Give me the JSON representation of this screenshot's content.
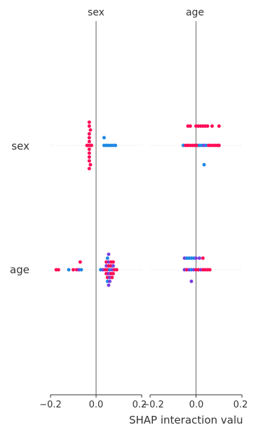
{
  "chart_data": {
    "type": "scatter",
    "subtype": "shap-interaction-summary",
    "features": [
      "sex",
      "age"
    ],
    "column_titles": [
      "sex",
      "age"
    ],
    "row_labels": [
      "sex",
      "age"
    ],
    "xlabel": "SHAP interaction valu",
    "xlim": [
      -0.2,
      0.2
    ],
    "xticks": [
      -0.2,
      0.0,
      0.2
    ],
    "xtick_labels": [
      "−0.2",
      "0.0",
      "0.2"
    ],
    "colors": {
      "high": "#ff0d57",
      "low": "#1e88e5",
      "mid": "#7b3fe0",
      "zero_line": "#999999",
      "spine": "#333333"
    },
    "panels": [
      {
        "row": "sex",
        "col": "sex",
        "points": [
          {
            "x": -0.03,
            "dy": -3,
            "c": "high"
          },
          {
            "x": -0.03,
            "dy": -2,
            "c": "high"
          },
          {
            "x": -0.03,
            "dy": -1,
            "c": "high"
          },
          {
            "x": -0.035,
            "dy": 0,
            "c": "high"
          },
          {
            "x": -0.025,
            "dy": 0,
            "c": "high"
          },
          {
            "x": -0.04,
            "dy": 0,
            "c": "high"
          },
          {
            "x": -0.02,
            "dy": 0,
            "c": "high"
          },
          {
            "x": -0.03,
            "dy": 1,
            "c": "high"
          },
          {
            "x": -0.03,
            "dy": 2,
            "c": "high"
          },
          {
            "x": -0.03,
            "dy": 3,
            "c": "high"
          },
          {
            "x": -0.025,
            "dy": -4,
            "c": "high"
          },
          {
            "x": -0.03,
            "dy": 4,
            "c": "high"
          },
          {
            "x": -0.03,
            "dy": -5,
            "c": "high"
          },
          {
            "x": -0.025,
            "dy": 5,
            "c": "high"
          },
          {
            "x": -0.03,
            "dy": -6,
            "c": "high"
          },
          {
            "x": -0.03,
            "dy": 6,
            "c": "high"
          },
          {
            "x": 0.035,
            "dy": 0,
            "c": "low"
          },
          {
            "x": 0.045,
            "dy": 0,
            "c": "low"
          },
          {
            "x": 0.055,
            "dy": 0,
            "c": "low"
          },
          {
            "x": 0.065,
            "dy": 0,
            "c": "low"
          },
          {
            "x": 0.075,
            "dy": 0,
            "c": "low"
          },
          {
            "x": 0.085,
            "dy": 0,
            "c": "low"
          },
          {
            "x": 0.035,
            "dy": -2,
            "c": "low"
          }
        ]
      },
      {
        "row": "sex",
        "col": "age",
        "points": [
          {
            "x": -0.055,
            "dy": 0,
            "c": "low"
          },
          {
            "x": -0.045,
            "dy": 0,
            "c": "high"
          },
          {
            "x": -0.035,
            "dy": 0,
            "c": "high"
          },
          {
            "x": -0.025,
            "dy": 0,
            "c": "high"
          },
          {
            "x": -0.015,
            "dy": 0,
            "c": "high"
          },
          {
            "x": -0.005,
            "dy": 0,
            "c": "high"
          },
          {
            "x": 0.005,
            "dy": 0,
            "c": "high"
          },
          {
            "x": 0.015,
            "dy": 0,
            "c": "low"
          },
          {
            "x": 0.025,
            "dy": 0,
            "c": "low"
          },
          {
            "x": 0.035,
            "dy": 0,
            "c": "mid"
          },
          {
            "x": 0.045,
            "dy": 0,
            "c": "low"
          },
          {
            "x": 0.055,
            "dy": 0,
            "c": "high"
          },
          {
            "x": 0.065,
            "dy": 0,
            "c": "high"
          },
          {
            "x": 0.075,
            "dy": 0,
            "c": "high"
          },
          {
            "x": 0.085,
            "dy": 0,
            "c": "high"
          },
          {
            "x": 0.095,
            "dy": 0,
            "c": "high"
          },
          {
            "x": 0.1,
            "dy": 0,
            "c": "high"
          },
          {
            "x": -0.035,
            "dy": -5,
            "c": "high"
          },
          {
            "x": -0.025,
            "dy": -5,
            "c": "high"
          },
          {
            "x": 0.0,
            "dy": -5,
            "c": "high"
          },
          {
            "x": 0.01,
            "dy": -5,
            "c": "high"
          },
          {
            "x": 0.02,
            "dy": -5,
            "c": "high"
          },
          {
            "x": 0.03,
            "dy": -5,
            "c": "high"
          },
          {
            "x": 0.04,
            "dy": -5,
            "c": "high"
          },
          {
            "x": 0.05,
            "dy": -5,
            "c": "high"
          },
          {
            "x": 0.07,
            "dy": -5,
            "c": "high"
          },
          {
            "x": 0.1,
            "dy": -5,
            "c": "high"
          },
          {
            "x": 0.035,
            "dy": 5,
            "c": "low"
          }
        ]
      },
      {
        "row": "age",
        "col": "sex",
        "points": [
          {
            "x": -0.175,
            "dy": 0,
            "c": "high"
          },
          {
            "x": -0.165,
            "dy": 0,
            "c": "high"
          },
          {
            "x": -0.12,
            "dy": 0,
            "c": "low"
          },
          {
            "x": -0.1,
            "dy": 0,
            "c": "high"
          },
          {
            "x": -0.085,
            "dy": 0,
            "c": "high"
          },
          {
            "x": -0.075,
            "dy": 0,
            "c": "mid"
          },
          {
            "x": -0.065,
            "dy": 0,
            "c": "low"
          },
          {
            "x": -0.07,
            "dy": -2,
            "c": "high"
          },
          {
            "x": 0.02,
            "dy": 0,
            "c": "low"
          },
          {
            "x": 0.03,
            "dy": 0,
            "c": "mid"
          },
          {
            "x": 0.04,
            "dy": 0,
            "c": "high"
          },
          {
            "x": 0.05,
            "dy": 0,
            "c": "high"
          },
          {
            "x": 0.06,
            "dy": 0,
            "c": "low"
          },
          {
            "x": 0.07,
            "dy": 0,
            "c": "mid"
          },
          {
            "x": 0.08,
            "dy": 0,
            "c": "high"
          },
          {
            "x": 0.09,
            "dy": 0,
            "c": "high"
          },
          {
            "x": 0.045,
            "dy": -1,
            "c": "mid"
          },
          {
            "x": 0.055,
            "dy": -1,
            "c": "high"
          },
          {
            "x": 0.065,
            "dy": -1,
            "c": "high"
          },
          {
            "x": 0.075,
            "dy": -1,
            "c": "mid"
          },
          {
            "x": 0.045,
            "dy": -2,
            "c": "high"
          },
          {
            "x": 0.055,
            "dy": -2,
            "c": "mid"
          },
          {
            "x": 0.065,
            "dy": -2,
            "c": "high"
          },
          {
            "x": 0.075,
            "dy": -2,
            "c": "high"
          },
          {
            "x": 0.05,
            "dy": -3,
            "c": "low"
          },
          {
            "x": 0.055,
            "dy": -4,
            "c": "mid"
          },
          {
            "x": 0.045,
            "dy": 1,
            "c": "high"
          },
          {
            "x": 0.055,
            "dy": 1,
            "c": "mid"
          },
          {
            "x": 0.065,
            "dy": 1,
            "c": "high"
          },
          {
            "x": 0.075,
            "dy": 1,
            "c": "high"
          },
          {
            "x": 0.05,
            "dy": 2,
            "c": "high"
          },
          {
            "x": 0.06,
            "dy": 2,
            "c": "mid"
          },
          {
            "x": 0.07,
            "dy": 2,
            "c": "high"
          },
          {
            "x": 0.05,
            "dy": 3,
            "c": "low"
          },
          {
            "x": 0.06,
            "dy": 3,
            "c": "mid"
          },
          {
            "x": 0.055,
            "dy": 4,
            "c": "mid"
          }
        ]
      },
      {
        "row": "age",
        "col": "age",
        "points": [
          {
            "x": -0.05,
            "dy": 0,
            "c": "mid"
          },
          {
            "x": -0.04,
            "dy": 0,
            "c": "high"
          },
          {
            "x": -0.03,
            "dy": 0,
            "c": "mid"
          },
          {
            "x": -0.02,
            "dy": 0,
            "c": "low"
          },
          {
            "x": -0.01,
            "dy": 0,
            "c": "mid"
          },
          {
            "x": 0.0,
            "dy": 0,
            "c": "high"
          },
          {
            "x": 0.01,
            "dy": 0,
            "c": "high"
          },
          {
            "x": 0.02,
            "dy": 0,
            "c": "mid"
          },
          {
            "x": 0.03,
            "dy": 0,
            "c": "high"
          },
          {
            "x": 0.04,
            "dy": 0,
            "c": "high"
          },
          {
            "x": 0.05,
            "dy": 0,
            "c": "high"
          },
          {
            "x": 0.06,
            "dy": 0,
            "c": "high"
          },
          {
            "x": -0.05,
            "dy": -3,
            "c": "mid"
          },
          {
            "x": -0.04,
            "dy": -3,
            "c": "low"
          },
          {
            "x": -0.03,
            "dy": -3,
            "c": "low"
          },
          {
            "x": -0.02,
            "dy": -3,
            "c": "low"
          },
          {
            "x": -0.01,
            "dy": -3,
            "c": "low"
          },
          {
            "x": 0.0,
            "dy": -3,
            "c": "mid"
          },
          {
            "x": 0.015,
            "dy": -3,
            "c": "mid"
          },
          {
            "x": 0.03,
            "dy": -3,
            "c": "high"
          },
          {
            "x": -0.02,
            "dy": 3,
            "c": "mid"
          }
        ]
      }
    ]
  }
}
